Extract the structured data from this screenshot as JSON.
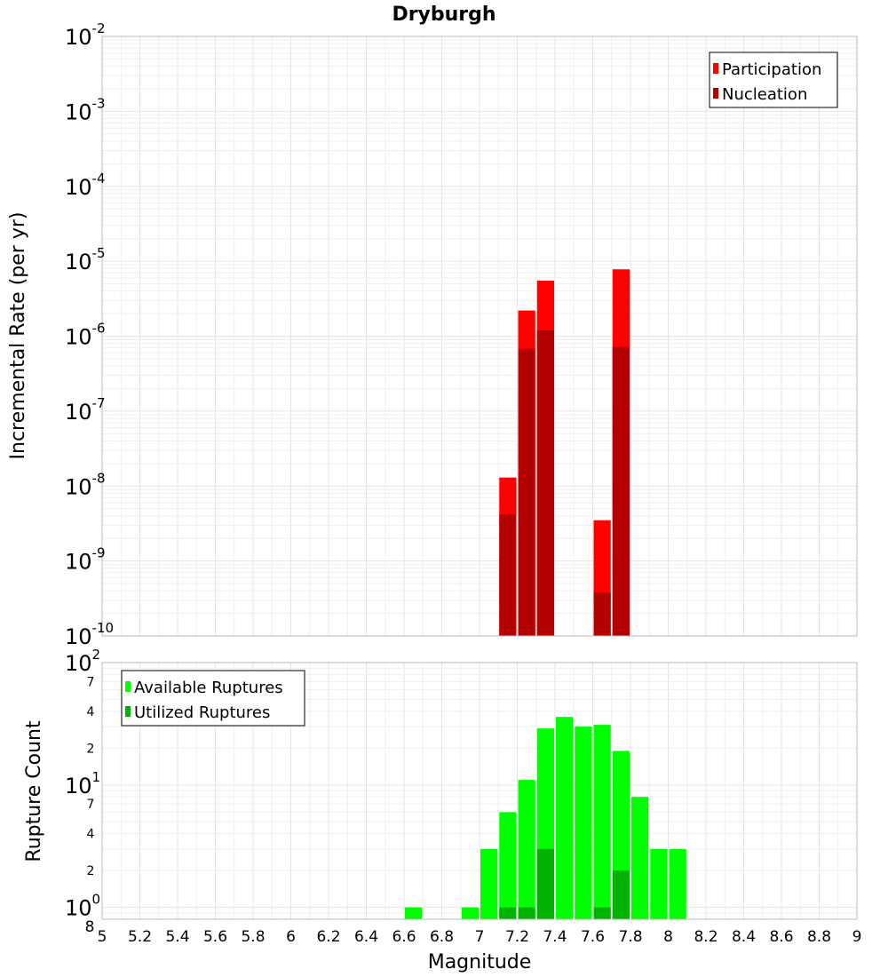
{
  "title": "Dryburgh",
  "chart_data": [
    {
      "type": "bar",
      "panel": "top",
      "ylabel": "Incremental Rate (per yr)",
      "yscale": "log",
      "ylim": [
        1e-10,
        0.01
      ],
      "xlim": [
        5,
        9
      ],
      "legend_position": "top-right",
      "series": [
        {
          "name": "Participation",
          "color": "#ff0000",
          "points": [
            {
              "x": 7.15,
              "y": 1.3e-08
            },
            {
              "x": 7.25,
              "y": 2.2e-06
            },
            {
              "x": 7.35,
              "y": 5.5e-06
            },
            {
              "x": 7.65,
              "y": 3.5e-09
            },
            {
              "x": 7.75,
              "y": 7.8e-06
            }
          ]
        },
        {
          "name": "Nucleation",
          "color": "#b30000",
          "points": [
            {
              "x": 7.15,
              "y": 4.2e-09
            },
            {
              "x": 7.25,
              "y": 6.8e-07
            },
            {
              "x": 7.35,
              "y": 1.2e-06
            },
            {
              "x": 7.65,
              "y": 3.8e-10
            },
            {
              "x": 7.75,
              "y": 7.2e-07
            }
          ]
        }
      ],
      "y_ticks": [
        {
          "base": "10",
          "exp": "-10",
          "value": 1e-10
        },
        {
          "base": "10",
          "exp": "-9",
          "value": 1e-09
        },
        {
          "base": "10",
          "exp": "-8",
          "value": 1e-08
        },
        {
          "base": "10",
          "exp": "-7",
          "value": 1e-07
        },
        {
          "base": "10",
          "exp": "-6",
          "value": 1e-06
        },
        {
          "base": "10",
          "exp": "-5",
          "value": 1e-05
        },
        {
          "base": "10",
          "exp": "-4",
          "value": 0.0001
        },
        {
          "base": "10",
          "exp": "-3",
          "value": 0.001
        },
        {
          "base": "10",
          "exp": "-2",
          "value": 0.01
        }
      ]
    },
    {
      "type": "bar",
      "panel": "bottom",
      "xlabel": "Magnitude",
      "ylabel": "Rupture Count",
      "yscale": "log",
      "ylim": [
        0.8,
        100
      ],
      "xlim": [
        5,
        9
      ],
      "legend_position": "top-left",
      "series": [
        {
          "name": "Available Ruptures",
          "color": "#00ff00",
          "points": [
            {
              "x": 6.65,
              "y": 1
            },
            {
              "x": 6.95,
              "y": 1
            },
            {
              "x": 7.05,
              "y": 3
            },
            {
              "x": 7.15,
              "y": 6
            },
            {
              "x": 7.25,
              "y": 11
            },
            {
              "x": 7.35,
              "y": 29
            },
            {
              "x": 7.45,
              "y": 36
            },
            {
              "x": 7.55,
              "y": 30
            },
            {
              "x": 7.65,
              "y": 31
            },
            {
              "x": 7.75,
              "y": 19
            },
            {
              "x": 7.85,
              "y": 8
            },
            {
              "x": 7.95,
              "y": 3
            },
            {
              "x": 8.05,
              "y": 3
            }
          ]
        },
        {
          "name": "Utilized Ruptures",
          "color": "#00b300",
          "points": [
            {
              "x": 7.15,
              "y": 1
            },
            {
              "x": 7.25,
              "y": 1
            },
            {
              "x": 7.35,
              "y": 3
            },
            {
              "x": 7.65,
              "y": 1
            },
            {
              "x": 7.75,
              "y": 2
            }
          ]
        }
      ],
      "y_ticks": [
        {
          "base": "10",
          "exp": "0",
          "value": 1
        },
        {
          "base": "10",
          "exp": "1",
          "value": 10
        },
        {
          "base": "10",
          "exp": "2",
          "value": 100
        }
      ],
      "y_minor_labels": [
        {
          "label": "8",
          "value": 0.8
        },
        {
          "label": "2",
          "value": 2
        },
        {
          "label": "4",
          "value": 4
        },
        {
          "label": "7",
          "value": 7
        },
        {
          "label": "2",
          "value": 20
        },
        {
          "label": "4",
          "value": 40
        },
        {
          "label": "7",
          "value": 70
        }
      ]
    }
  ],
  "x_ticks": [
    "5",
    "5.2",
    "5.4",
    "5.6",
    "5.8",
    "6",
    "6.2",
    "6.4",
    "6.6",
    "6.8",
    "7",
    "7.2",
    "7.4",
    "7.6",
    "7.8",
    "8",
    "8.2",
    "8.4",
    "8.6",
    "8.8",
    "9"
  ],
  "bar_width": 0.1
}
